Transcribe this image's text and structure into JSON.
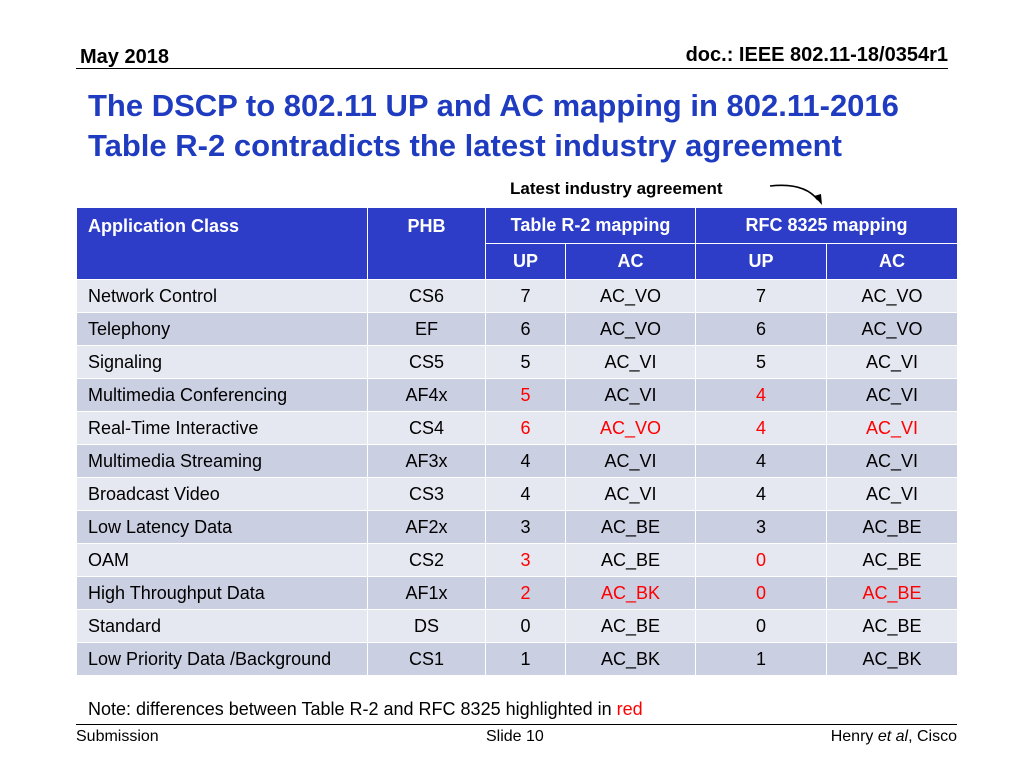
{
  "header": {
    "date": "May 2018",
    "doc_id": "doc.: IEEE 802.11-18/0354r1"
  },
  "title": {
    "line1": "The DSCP to 802.11 UP and AC mapping in 802.11-2016",
    "line2": "Table R-2 contradicts the latest industry agreement"
  },
  "annotation": "Latest industry agreement",
  "table": {
    "headers": {
      "app_class": "Application Class",
      "phb": "PHB",
      "r2": "Table R-2 mapping",
      "rfc": "RFC 8325 mapping",
      "up": "UP",
      "ac": "AC"
    },
    "rows": [
      {
        "app": "Network Control",
        "phb": "CS6",
        "r2_up": "7",
        "r2_ac": "AC_VO",
        "rfc_up": "7",
        "rfc_ac": "AC_VO"
      },
      {
        "app": "Telephony",
        "phb": "EF",
        "r2_up": "6",
        "r2_ac": "AC_VO",
        "rfc_up": "6",
        "rfc_ac": "AC_VO"
      },
      {
        "app": "Signaling",
        "phb": "CS5",
        "r2_up": "5",
        "r2_ac": "AC_VI",
        "rfc_up": "5",
        "rfc_ac": "AC_VI"
      },
      {
        "app": "Multimedia Conferencing",
        "phb": "AF4x",
        "r2_up": "5",
        "r2_ac": "AC_VI",
        "rfc_up": "4",
        "rfc_ac": "AC_VI"
      },
      {
        "app": "Real-Time Interactive",
        "phb": "CS4",
        "r2_up": "6",
        "r2_ac": "AC_VO",
        "rfc_up": "4",
        "rfc_ac": "AC_VI"
      },
      {
        "app": "Multimedia Streaming",
        "phb": "AF3x",
        "r2_up": "4",
        "r2_ac": "AC_VI",
        "rfc_up": "4",
        "rfc_ac": "AC_VI"
      },
      {
        "app": "Broadcast Video",
        "phb": "CS3",
        "r2_up": "4",
        "r2_ac": "AC_VI",
        "rfc_up": "4",
        "rfc_ac": "AC_VI"
      },
      {
        "app": "Low Latency Data",
        "phb": "AF2x",
        "r2_up": "3",
        "r2_ac": "AC_BE",
        "rfc_up": "3",
        "rfc_ac": "AC_BE"
      },
      {
        "app": "OAM",
        "phb": "CS2",
        "r2_up": "3",
        "r2_ac": "AC_BE",
        "rfc_up": "0",
        "rfc_ac": "AC_BE"
      },
      {
        "app": "High Throughput Data",
        "phb": "AF1x",
        "r2_up": "2",
        "r2_ac": "AC_BK",
        "rfc_up": "0",
        "rfc_ac": "AC_BE"
      },
      {
        "app": "Standard",
        "phb": "DS",
        "r2_up": "0",
        "r2_ac": "AC_BE",
        "rfc_up": "0",
        "rfc_ac": "AC_BE"
      },
      {
        "app": "Low Priority Data /Background",
        "phb": "CS1",
        "r2_up": "1",
        "r2_ac": "AC_BK",
        "rfc_up": "1",
        "rfc_ac": "AC_BK"
      }
    ]
  },
  "note": {
    "text": "Note: differences  between Table R-2 and RFC 8325 highlighted in ",
    "highlight": "red"
  },
  "footer": {
    "left": "Submission",
    "center": "Slide 10",
    "author": "Henry ",
    "etal": "et al",
    "org": ", Cisco"
  },
  "colors": {
    "title": "#1f3bbf",
    "header_bg": "#2d3dc8",
    "row_light": "#e6e8f1",
    "row_dark": "#cbcfe2",
    "highlight": "#ff0000"
  }
}
